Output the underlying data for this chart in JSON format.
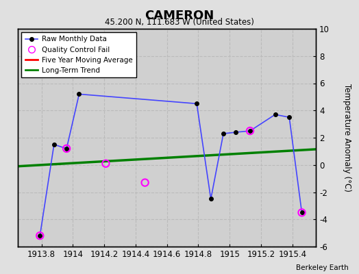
{
  "title": "CAMERON",
  "subtitle": "45.200 N, 111.683 W (United States)",
  "watermark": "Berkeley Earth",
  "ylabel_right": "Temperature Anomaly (°C)",
  "xlim": [
    1913.65,
    1915.55
  ],
  "ylim": [
    -6,
    10
  ],
  "yticks": [
    -6,
    -4,
    -2,
    0,
    2,
    4,
    6,
    8,
    10
  ],
  "xticks": [
    1913.8,
    1914.0,
    1914.2,
    1914.4,
    1914.6,
    1914.8,
    1915.0,
    1915.2,
    1915.4
  ],
  "xtick_labels": [
    "1913.8",
    "1914",
    "1914.2",
    "1914.4",
    "1914.6",
    "1914.8",
    "1915",
    "1915.2",
    "1915.4"
  ],
  "raw_x": [
    1913.79,
    1913.88,
    1913.96,
    1914.04,
    1914.79,
    1914.88,
    1914.96,
    1915.04,
    1915.13,
    1915.29,
    1915.38,
    1915.46
  ],
  "raw_y": [
    -5.2,
    1.5,
    1.2,
    5.2,
    4.5,
    -2.5,
    2.3,
    2.4,
    2.5,
    3.7,
    3.5,
    -3.5
  ],
  "qc_fail_x": [
    1913.79,
    1913.96,
    1914.21,
    1914.46,
    1915.13,
    1915.46
  ],
  "qc_fail_y": [
    -5.2,
    1.2,
    0.1,
    -1.3,
    2.5,
    -3.5
  ],
  "trend_x": [
    1913.65,
    1915.55
  ],
  "trend_y": [
    -0.1,
    1.15
  ],
  "bg_color": "#e0e0e0",
  "plot_bg_color": "#d0d0d0",
  "raw_line_color": "#4444ff",
  "raw_marker_color": "black",
  "qc_marker_color": "magenta",
  "trend_color": "green",
  "moving_avg_color": "red",
  "grid_color": "#bbbbbb"
}
